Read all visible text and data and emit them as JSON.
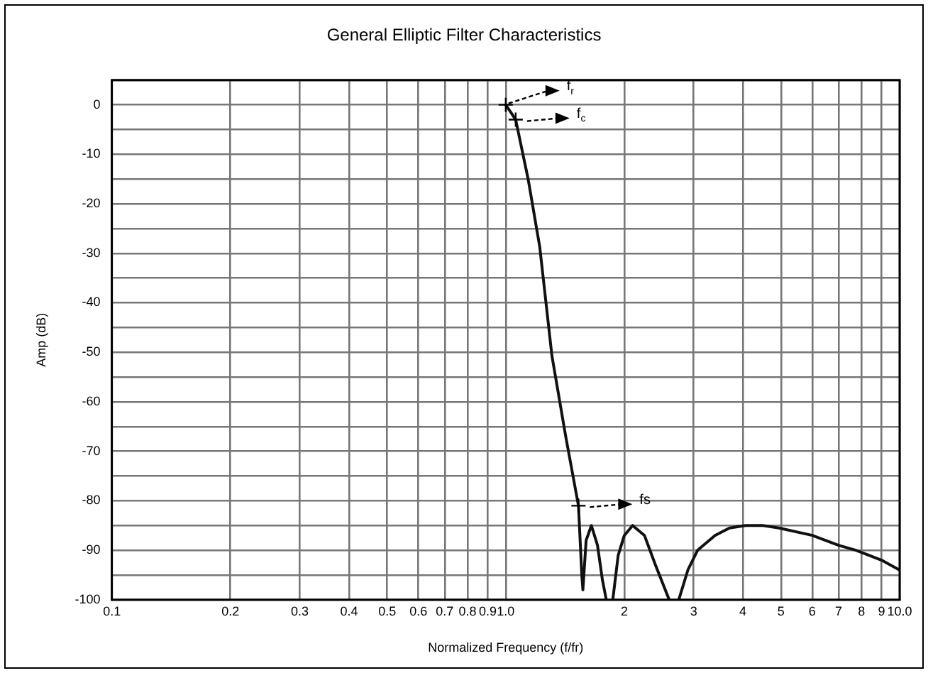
{
  "chart_data": {
    "type": "line",
    "title": "General Elliptic Filter Characteristics",
    "xlabel": "Normalized Frequency (f/fr)",
    "ylabel": "Amp (dB)",
    "log": "x",
    "grid": true,
    "legend": false,
    "marker": "none",
    "line_style": "solid",
    "xlim": [
      0.1,
      10
    ],
    "ylim": [
      -100,
      5
    ],
    "xticks": [
      {
        "value": 0.1,
        "label": "0.1"
      },
      0.2,
      0.3,
      0.4,
      0.5,
      0.6,
      0.7,
      0.8,
      0.9,
      {
        "value": 1,
        "label": "1.0"
      },
      2,
      3,
      4,
      5,
      6,
      7,
      8,
      9,
      {
        "value": 10,
        "label": "10.0"
      }
    ],
    "yticks": [
      {
        "value": 5,
        "label": null
      },
      0,
      {
        "value": -5,
        "label": null
      },
      -10,
      {
        "value": -15,
        "label": null
      },
      -20,
      {
        "value": -25,
        "label": null
      },
      -30,
      {
        "value": -35,
        "label": null
      },
      -40,
      {
        "value": -45,
        "label": null
      },
      -50,
      {
        "value": -55,
        "label": null
      },
      -60,
      {
        "value": -65,
        "label": null
      },
      -70,
      {
        "value": -75,
        "label": null
      },
      -80,
      {
        "value": -85,
        "label": null
      },
      -90,
      {
        "value": -95,
        "label": null
      },
      -100
    ],
    "series": [
      {
        "color": "#111111",
        "x": [
          1.0,
          1.03,
          1.06,
          1.14,
          1.22,
          1.31,
          1.42,
          1.53,
          1.56,
          1.57,
          1.6,
          1.65,
          1.71,
          1.76,
          1.8,
          1.82,
          1.87,
          1.93,
          2.0,
          2.1,
          2.25,
          2.4,
          2.6,
          2.65,
          2.75,
          2.9,
          3.07,
          3.4,
          3.7,
          4.06,
          4.5,
          4.94,
          6.0,
          7.0,
          7.75,
          9.0,
          10.0
        ],
        "values": [
          0,
          -1.5,
          -3,
          -15,
          -28.7,
          -50.7,
          -67,
          -81,
          -95,
          -98,
          -88,
          -85,
          -89,
          -96,
          -100,
          null,
          -100,
          -91,
          -87,
          -85,
          -87,
          -93,
          -100,
          null,
          -100,
          -94,
          -90,
          -87,
          -85.5,
          -85,
          -85,
          -85.5,
          -87,
          -89,
          -90,
          -92,
          -94
        ]
      }
    ],
    "annotations": [
      {
        "text": "f$_{r}$",
        "x": 1.0,
        "y": 0
      },
      {
        "text": "f$_{c}$",
        "x": 1.06,
        "y": -3
      },
      {
        "text": "fs",
        "x": 1.53,
        "y": -81
      }
    ]
  }
}
